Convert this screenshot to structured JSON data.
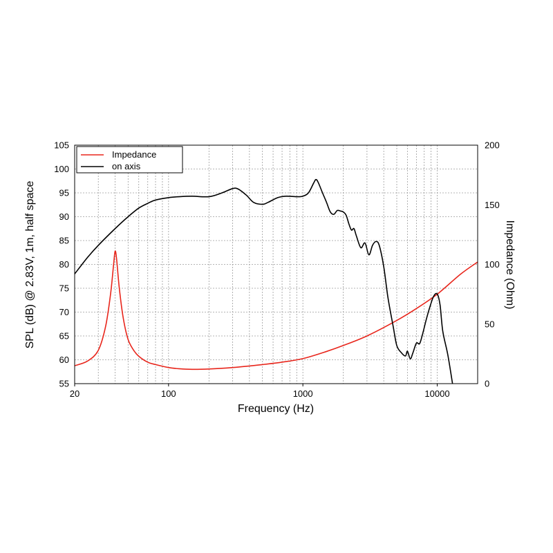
{
  "chart_data": {
    "type": "line",
    "xlabel": "Frequency (Hz)",
    "ylabel": "SPL (dB) @ 2.83V, 1m, half space",
    "y2label": "Impedance (Ohm)",
    "xscale": "log",
    "xlim": [
      20,
      20000
    ],
    "ylim": [
      55,
      105
    ],
    "y2lim": [
      0,
      200
    ],
    "grid": true,
    "legend": "top-left",
    "x_ticks": [
      {
        "value": 20,
        "label": "20"
      },
      {
        "value": 100,
        "label": "100"
      },
      {
        "value": 1000,
        "label": "1000"
      },
      {
        "value": 10000,
        "label": "10000"
      }
    ],
    "y_ticks": [
      55,
      60,
      65,
      70,
      75,
      80,
      85,
      90,
      95,
      100,
      105
    ],
    "y2_ticks": [
      0,
      50,
      100,
      150,
      200
    ],
    "series": [
      {
        "name": "Impedance",
        "axis": "right",
        "color": "#e8251b",
        "x": [
          20,
          25,
          30,
          34,
          37,
          39,
          40,
          41,
          43,
          46,
          50,
          55,
          60,
          70,
          80,
          100,
          120,
          150,
          200,
          300,
          500,
          700,
          1000,
          1500,
          2000,
          3000,
          5000,
          7000,
          10000,
          15000,
          20000
        ],
        "y": [
          15,
          19,
          28,
          48,
          75,
          100,
          111,
          105,
          80,
          55,
          37,
          28,
          23,
          18,
          16,
          13.5,
          12.5,
          12,
          12.3,
          13.5,
          16,
          18,
          21,
          27,
          32,
          40,
          53,
          63,
          75,
          92,
          102
        ]
      },
      {
        "name": "on axis",
        "axis": "left",
        "color": "#000000",
        "x": [
          20,
          25,
          30,
          40,
          50,
          60,
          70,
          80,
          100,
          120,
          150,
          200,
          250,
          300,
          330,
          380,
          430,
          500,
          550,
          650,
          750,
          900,
          1000,
          1100,
          1200,
          1250,
          1300,
          1400,
          1500,
          1600,
          1700,
          1800,
          1900,
          2000,
          2100,
          2200,
          2300,
          2400,
          2500,
          2700,
          2900,
          3100,
          3300,
          3500,
          3700,
          4000,
          4300,
          4700,
          5000,
          5400,
          5800,
          6000,
          6300,
          6600,
          7000,
          7400,
          7800,
          8300,
          8800,
          9400,
          10000,
          10500,
          11000,
          12000,
          13000
        ],
        "y": [
          78,
          81.5,
          84,
          87.5,
          90,
          91.8,
          92.8,
          93.5,
          94,
          94.2,
          94.3,
          94.2,
          95,
          95.9,
          95.8,
          94.5,
          93,
          92.6,
          93,
          94,
          94.3,
          94.2,
          94.3,
          95,
          97,
          97.8,
          97.2,
          95,
          93,
          91,
          90.5,
          91.3,
          91.2,
          91,
          90.3,
          88.5,
          87.2,
          87.5,
          86,
          83.5,
          84.5,
          82,
          84,
          84.8,
          84,
          79.5,
          73,
          67,
          63,
          61.5,
          60.8,
          61.8,
          60.2,
          61.5,
          63.5,
          63.4,
          65.5,
          68.5,
          71,
          73.3,
          73.8,
          71.5,
          66,
          61,
          55
        ]
      }
    ]
  }
}
